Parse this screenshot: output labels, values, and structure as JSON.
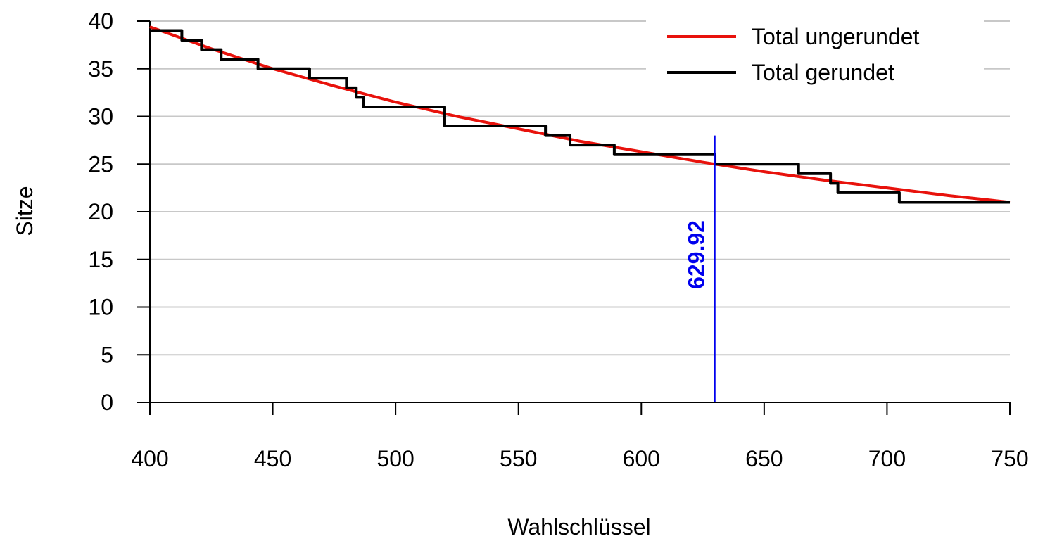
{
  "chart_data": {
    "type": "line",
    "xlabel": "Wahlschlüssel",
    "ylabel": "Sitze",
    "xlim": [
      400,
      750
    ],
    "ylim": [
      0,
      40
    ],
    "x_ticks": [
      "400",
      "450",
      "500",
      "550",
      "600",
      "650",
      "700",
      "750"
    ],
    "y_ticks": [
      "0",
      "5",
      "10",
      "15",
      "20",
      "25",
      "30",
      "35",
      "40"
    ],
    "grid": "horizontal",
    "legend_position": "top-right",
    "series": [
      {
        "name": "Total ungerundet",
        "color": "#e8120c",
        "style": "smooth",
        "x": [
          400,
          425,
          450,
          475,
          500,
          525,
          550,
          575,
          600,
          625,
          629.92,
          650,
          675,
          700,
          725,
          750
        ],
        "y": [
          39.4,
          37.1,
          35.0,
          33.2,
          31.5,
          30.0,
          28.7,
          27.4,
          26.3,
          25.2,
          25.0,
          24.2,
          23.3,
          22.5,
          21.7,
          21.0
        ]
      },
      {
        "name": "Total gerundet",
        "color": "#000000",
        "style": "step",
        "x": [
          400,
          413,
          413,
          421,
          421,
          429,
          429,
          444,
          444,
          465,
          465,
          480,
          480,
          484,
          484,
          487,
          487,
          520,
          520,
          561,
          561,
          571,
          571,
          589,
          589,
          630,
          630,
          664,
          664,
          677,
          677,
          680,
          680,
          705,
          705,
          750
        ],
        "y": [
          39,
          39,
          38,
          38,
          37,
          37,
          36,
          36,
          35,
          35,
          34,
          34,
          33,
          33,
          32,
          32,
          31,
          31,
          29,
          29,
          28,
          28,
          27,
          27,
          26,
          26,
          25,
          25,
          24,
          24,
          23,
          23,
          22,
          22,
          21,
          21
        ]
      }
    ],
    "annotations": [
      {
        "type": "vline",
        "x": 629.92,
        "y_top": 28,
        "label": "629.92",
        "color": "#0000ee"
      }
    ]
  }
}
